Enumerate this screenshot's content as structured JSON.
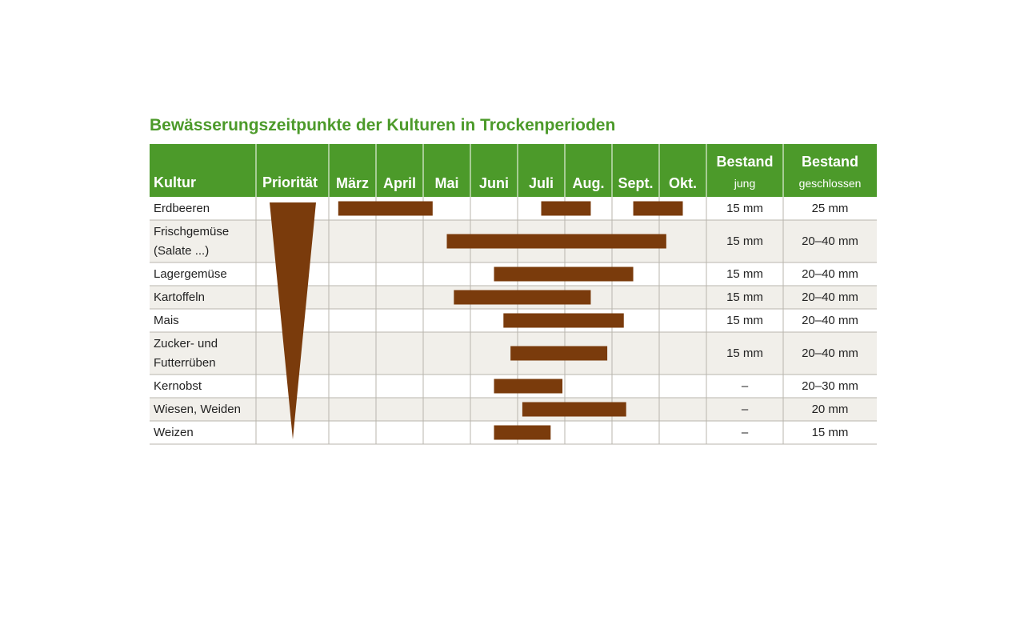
{
  "title": "Bewässerungszeitpunkte der Kulturen in Trockenperioden",
  "colors": {
    "header_bg": "#4c9a2a",
    "bar": "#7a3b0c",
    "row_alt": "#f1efea",
    "grid_line": "#b9b6ad",
    "title": "#4c9a2a"
  },
  "header": {
    "kultur": "Kultur",
    "prioritaet": "Priorität",
    "bestand_jung_title": "Bestand",
    "bestand_jung_sub": "jung",
    "bestand_geschlossen_title": "Bestand",
    "bestand_geschlossen_sub": "geschlossen"
  },
  "chart_data": {
    "type": "gantt",
    "months": [
      "März",
      "April",
      "Mai",
      "Juni",
      "Juli",
      "Aug.",
      "Sept.",
      "Okt."
    ],
    "priority_indicator": "wedge decreasing from top row to bottom row",
    "rows": [
      {
        "kultur": [
          "Erdbeeren"
        ],
        "periods": [
          [
            0.2,
            2.2
          ],
          [
            4.5,
            5.55
          ],
          [
            6.45,
            7.5
          ]
        ],
        "jung": "15 mm",
        "geschlossen": "25 mm"
      },
      {
        "kultur": [
          "Frischgemüse",
          "(Salate ...)"
        ],
        "periods": [
          [
            2.5,
            7.15
          ]
        ],
        "jung": "15 mm",
        "geschlossen": "20–40 mm"
      },
      {
        "kultur": [
          "Lagergemüse"
        ],
        "periods": [
          [
            3.5,
            6.45
          ]
        ],
        "jung": "15 mm",
        "geschlossen": "20–40 mm"
      },
      {
        "kultur": [
          "Kartoffeln"
        ],
        "periods": [
          [
            2.65,
            5.55
          ]
        ],
        "jung": "15 mm",
        "geschlossen": "20–40 mm"
      },
      {
        "kultur": [
          "Mais"
        ],
        "periods": [
          [
            3.7,
            6.25
          ]
        ],
        "jung": "15 mm",
        "geschlossen": "20–40 mm"
      },
      {
        "kultur": [
          "Zucker- und",
          "Futterrüben"
        ],
        "periods": [
          [
            3.85,
            5.9
          ]
        ],
        "jung": "15 mm",
        "geschlossen": "20–40 mm"
      },
      {
        "kultur": [
          "Kernobst"
        ],
        "periods": [
          [
            3.5,
            4.95
          ]
        ],
        "jung": "–",
        "geschlossen": "20–30 mm"
      },
      {
        "kultur": [
          "Wiesen, Weiden"
        ],
        "periods": [
          [
            4.1,
            6.3
          ]
        ],
        "jung": "–",
        "geschlossen": "20 mm"
      },
      {
        "kultur": [
          "Weizen"
        ],
        "periods": [
          [
            3.5,
            4.7
          ]
        ],
        "jung": "–",
        "geschlossen": "15 mm"
      }
    ]
  }
}
